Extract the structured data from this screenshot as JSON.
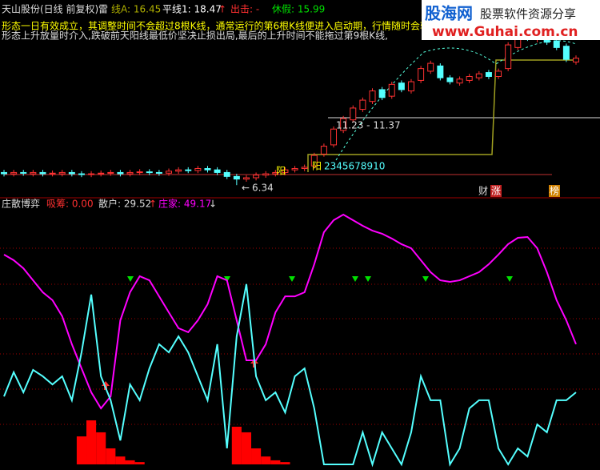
{
  "header": {
    "stock": "天山股份(日线 前复权)",
    "lei": "雷",
    "lineA": "线A: 16.45",
    "pingxian": "平线1: 18.47",
    "up_arrow": "↑",
    "chuji": "出击: -",
    "xiujia": "休假: 15.99"
  },
  "notes": [
    "形态一日有效成立，其调整时间不会超过8根K线，通常运行的第6根K线便进入启动期，行情随时会转",
    "形态上升放量时介入,跌破前天阳线最低价坚决止损出局,最后的上升时间不能拖过第9根K线,"
  ],
  "watermark": {
    "site": "股海网",
    "slogan": "股票软件资源分享",
    "url": "www.Guhai.com.cn"
  },
  "annotations": {
    "range": "11.23 - 11.37",
    "low_arrow": "←",
    "low": "6.34",
    "yang1": "阳",
    "yang2": "阳",
    "count": "2345678910",
    "cai": "财",
    "zhang": "涨",
    "bang": "榜"
  },
  "panel2": {
    "title": "庄散博弈",
    "xichou": "吸筹: 0.00",
    "sanhu": "散户: 29.52",
    "sanhu_arrow": "↑",
    "zhuangjia": "庄家: 49.17",
    "zhuangjia_arrow": "↓"
  },
  "chart_data": [
    {
      "type": "candlestick",
      "ylim": [
        5.5,
        19.5
      ],
      "open": [
        7.3,
        7.2,
        7.3,
        7.2,
        7.3,
        7.2,
        7.2,
        7.3,
        7.2,
        7.15,
        7.2,
        7.25,
        7.3,
        7.2,
        7.3,
        7.35,
        7.3,
        7.25,
        7.4,
        7.5,
        7.45,
        7.6,
        7.5,
        7.3,
        7.0,
        6.8,
        6.9,
        7.1,
        7.2,
        7.3,
        7.5,
        7.6,
        7.8,
        8.7,
        9.4,
        10.5,
        11.3,
        12.1,
        12.7,
        13.6,
        13.1,
        14.1,
        13.5,
        14.3,
        15.0,
        15.4,
        14.5,
        14.1,
        14.3,
        14.5,
        14.9,
        14.6,
        15.2,
        16.8,
        17.9,
        17.4,
        17.9,
        17.3,
        16.9,
        15.7
      ],
      "close": [
        7.2,
        7.3,
        7.25,
        7.3,
        7.2,
        7.25,
        7.3,
        7.2,
        7.15,
        7.2,
        7.25,
        7.3,
        7.2,
        7.3,
        7.35,
        7.3,
        7.25,
        7.4,
        7.5,
        7.45,
        7.6,
        7.5,
        7.3,
        7.0,
        6.8,
        6.9,
        7.1,
        7.2,
        7.3,
        7.5,
        7.6,
        7.7,
        8.6,
        9.3,
        10.6,
        11.4,
        12.2,
        12.8,
        13.5,
        13.0,
        14.0,
        13.6,
        14.2,
        15.2,
        15.6,
        14.5,
        14.2,
        14.4,
        14.6,
        14.8,
        14.6,
        15.0,
        17.0,
        17.8,
        17.5,
        17.8,
        17.2,
        16.8,
        15.9,
        15.99
      ],
      "high": [
        7.5,
        7.5,
        7.5,
        7.5,
        7.5,
        7.45,
        7.5,
        7.5,
        7.4,
        7.4,
        7.45,
        7.5,
        7.5,
        7.5,
        7.55,
        7.55,
        7.5,
        7.6,
        7.7,
        7.7,
        7.8,
        7.8,
        7.7,
        7.5,
        7.2,
        7.1,
        7.3,
        7.4,
        7.5,
        7.7,
        7.8,
        7.9,
        8.8,
        9.5,
        10.8,
        11.6,
        12.4,
        13.0,
        13.7,
        13.8,
        14.2,
        14.3,
        14.4,
        15.4,
        15.8,
        15.6,
        14.7,
        14.6,
        14.8,
        15.0,
        15.1,
        15.2,
        17.2,
        18.0,
        18.1,
        18.0,
        18.1,
        17.5,
        17.1,
        16.2
      ],
      "low": [
        7.0,
        7.0,
        7.05,
        7.0,
        7.0,
        7.0,
        7.0,
        7.0,
        6.95,
        6.95,
        7.0,
        7.05,
        7.0,
        7.0,
        7.1,
        7.1,
        7.05,
        7.05,
        7.2,
        7.25,
        7.25,
        7.3,
        7.1,
        6.8,
        6.34,
        6.6,
        6.7,
        6.9,
        7.0,
        7.1,
        7.3,
        7.4,
        7.6,
        8.5,
        9.2,
        10.3,
        11.1,
        11.9,
        12.5,
        12.8,
        12.9,
        13.4,
        13.3,
        14.1,
        14.8,
        14.3,
        14.0,
        13.9,
        14.1,
        14.3,
        14.4,
        14.4,
        15.0,
        16.6,
        17.3,
        17.2,
        17.0,
        16.6,
        15.7,
        15.5
      ],
      "up_color": "#ff3232",
      "down_color": "#54ffff"
    },
    {
      "type": "line",
      "ylim": [
        0,
        100
      ],
      "series": [
        {
          "color": "#ff00ff",
          "values": [
            82.4,
            80.2,
            77.0,
            72.3,
            67.6,
            64.5,
            58.2,
            47.2,
            37.7,
            28.3,
            22.0,
            26.7,
            56.6,
            67.6,
            73.9,
            72.3,
            66.0,
            59.7,
            53.5,
            51.9,
            56.6,
            62.9,
            73.9,
            72.3,
            56.6,
            40.9,
            40.9,
            47.2,
            59.7,
            66.0,
            66.0,
            67.6,
            78.6,
            91.2,
            95.9,
            98.1,
            95.9,
            93.7,
            91.8,
            90.6,
            88.7,
            86.5,
            84.9,
            80.2,
            75.5,
            72.3,
            71.7,
            72.3,
            73.9,
            75.5,
            78.6,
            82.4,
            86.5,
            89.0,
            89.3,
            84.9,
            75.5,
            64.5,
            56.6,
            47.2
          ]
        },
        {
          "color": "#54ffff",
          "values": [
            26.7,
            36.2,
            28.3,
            37.1,
            34.6,
            31.4,
            34.6,
            25.2,
            44.0,
            66.7,
            34.6,
            25.2,
            9.4,
            31.4,
            25.2,
            37.7,
            47.2,
            44.0,
            50.3,
            44.0,
            34.6,
            25.2,
            47.2,
            6.3,
            50.3,
            70.8,
            34.6,
            25.2,
            28.3,
            20.4,
            34.6,
            37.7,
            22.0,
            0,
            0,
            0,
            0,
            12.6,
            0,
            12.6,
            6.3,
            0,
            12.6,
            34.6,
            25.2,
            25.2,
            0,
            6.3,
            22.0,
            25.2,
            25.2,
            6.3,
            0,
            6.3,
            3.1,
            15.7,
            12.6,
            25.2,
            25.2,
            28.3
          ]
        }
      ],
      "bars": {
        "color": "#ff0000",
        "values": [
          0,
          0,
          0,
          0,
          0,
          0,
          0,
          0,
          11.0,
          17.3,
          12.6,
          6.3,
          3.1,
          1.6,
          0.9,
          0,
          0,
          0,
          0,
          0,
          0,
          0,
          0,
          0,
          14.8,
          12.6,
          6.3,
          3.1,
          1.6,
          0.9,
          0,
          0,
          0,
          0,
          0,
          0,
          0,
          0,
          0,
          0,
          0,
          0,
          0,
          0,
          0,
          0,
          0,
          0,
          0,
          0,
          0,
          0,
          0,
          0,
          0,
          0,
          0,
          0,
          0,
          0
        ]
      }
    }
  ]
}
